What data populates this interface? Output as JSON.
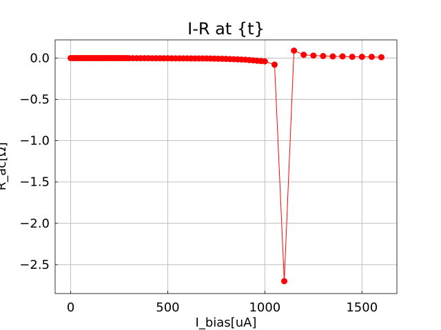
{
  "chart_data": {
    "type": "scatter",
    "title": "I-R at {t}",
    "xlabel": "I_bias[uA]",
    "ylabel": "R_ac[Ω]",
    "xlim": [
      -80,
      1680
    ],
    "ylim": [
      -2.85,
      0.22
    ],
    "xticks": [
      0,
      500,
      1000,
      1500
    ],
    "xtick_labels": [
      "0",
      "500",
      "1000",
      "1500"
    ],
    "yticks": [
      0.0,
      -0.5,
      -1.0,
      -1.5,
      -2.0,
      -2.5
    ],
    "ytick_labels": [
      "0.0",
      "−0.5",
      "−1.0",
      "−1.5",
      "−2.0",
      "−2.5"
    ],
    "grid": true,
    "color": "#ff0000",
    "markers": true,
    "series": [
      {
        "x": [
          0,
          10,
          20,
          30,
          40,
          50,
          60,
          70,
          80,
          90,
          100,
          110,
          120,
          130,
          140,
          150,
          160,
          170,
          180,
          190,
          200,
          210,
          220,
          230,
          240,
          250,
          260,
          270,
          280,
          290,
          300,
          320,
          340,
          360,
          380,
          400,
          420,
          440,
          460,
          480,
          500,
          520,
          540,
          560,
          580,
          600,
          620,
          640,
          660,
          680,
          700,
          720,
          740,
          760,
          780,
          800,
          820,
          840,
          860,
          880,
          900,
          920,
          940,
          960,
          980,
          1000,
          1050,
          1100,
          1150,
          1200,
          1250,
          1300,
          1350,
          1400,
          1450,
          1500,
          1550,
          1600
        ],
        "y": [
          0.0,
          0.0,
          0.0,
          0.0,
          0.0,
          0.0,
          0.0,
          0.0,
          0.0,
          0.0,
          0.0,
          0.0,
          0.0,
          0.0,
          0.0,
          0.0,
          0.0,
          0.0,
          0.0,
          0.0,
          0.0,
          0.0,
          0.0,
          0.0,
          0.0,
          0.0,
          0.0,
          0.0,
          0.0,
          0.0,
          -0.002,
          -0.002,
          -0.002,
          -0.002,
          -0.002,
          -0.002,
          -0.003,
          -0.003,
          -0.003,
          -0.003,
          -0.003,
          -0.004,
          -0.004,
          -0.004,
          -0.004,
          -0.004,
          -0.005,
          -0.005,
          -0.005,
          -0.005,
          -0.005,
          -0.006,
          -0.007,
          -0.008,
          -0.009,
          -0.01,
          -0.012,
          -0.014,
          -0.016,
          -0.018,
          -0.02,
          -0.024,
          -0.028,
          -0.032,
          -0.036,
          -0.04,
          -0.08,
          -2.7,
          0.09,
          0.04,
          0.03,
          0.025,
          0.02,
          0.02,
          0.015,
          0.015,
          0.015,
          0.01
        ]
      }
    ]
  }
}
